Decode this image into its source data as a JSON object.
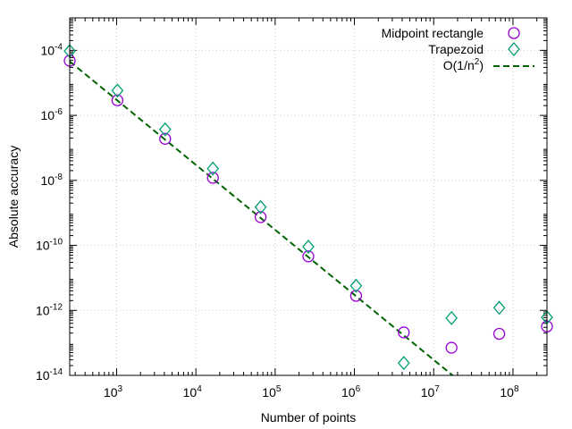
{
  "chart_data": {
    "type": "scatter",
    "xlabel": "Number of points",
    "ylabel": "Absolute accuracy",
    "xscale": "log",
    "yscale": "log",
    "xlim": [
      256,
      268435456
    ],
    "ylim": [
      1e-14,
      0.001
    ],
    "grid": true,
    "legend_position": "top-right",
    "x_ticks": [
      {
        "base": "10",
        "exp": "3",
        "value": 1000.0
      },
      {
        "base": "10",
        "exp": "4",
        "value": 10000.0
      },
      {
        "base": "10",
        "exp": "5",
        "value": 100000.0
      },
      {
        "base": "10",
        "exp": "6",
        "value": 1000000.0
      },
      {
        "base": "10",
        "exp": "7",
        "value": 10000000.0
      },
      {
        "base": "10",
        "exp": "8",
        "value": 100000000.0
      }
    ],
    "y_ticks": [
      {
        "base": "10",
        "exp": "-4",
        "value": 0.0001
      },
      {
        "base": "10",
        "exp": "-6",
        "value": 1e-06
      },
      {
        "base": "10",
        "exp": "-8",
        "value": 1e-08
      },
      {
        "base": "10",
        "exp": "-10",
        "value": 1e-10
      },
      {
        "base": "10",
        "exp": "-12",
        "value": 1e-12
      },
      {
        "base": "10",
        "exp": "-14",
        "value": 1e-14
      }
    ],
    "x": [
      256,
      1024,
      4096,
      16384,
      65536,
      262144,
      1048576,
      4194304,
      16777216,
      67108864,
      268435456
    ],
    "series": [
      {
        "name": "Midpoint rectangle",
        "marker": "circle",
        "color": "#9400d3",
        "values": [
          4.8e-05,
          2.9e-06,
          1.9e-07,
          1.2e-08,
          7.4e-10,
          4.6e-11,
          2.8e-12,
          2.1e-13,
          7.1e-14,
          1.9e-13,
          3.2e-13
        ]
      },
      {
        "name": "Trapezoid",
        "marker": "diamond",
        "color": "#009e73",
        "values": [
          9.5e-05,
          5.8e-06,
          3.7e-07,
          2.3e-08,
          1.5e-09,
          9.1e-11,
          5.7e-12,
          2.4e-14,
          5.8e-13,
          1.2e-12,
          6.1e-13
        ]
      },
      {
        "name": "O(1/n",
        "name_sup": "2",
        "name_tail": ")",
        "type": "line",
        "dash": true,
        "color": "#006400",
        "formula": "3/n^2"
      }
    ]
  }
}
